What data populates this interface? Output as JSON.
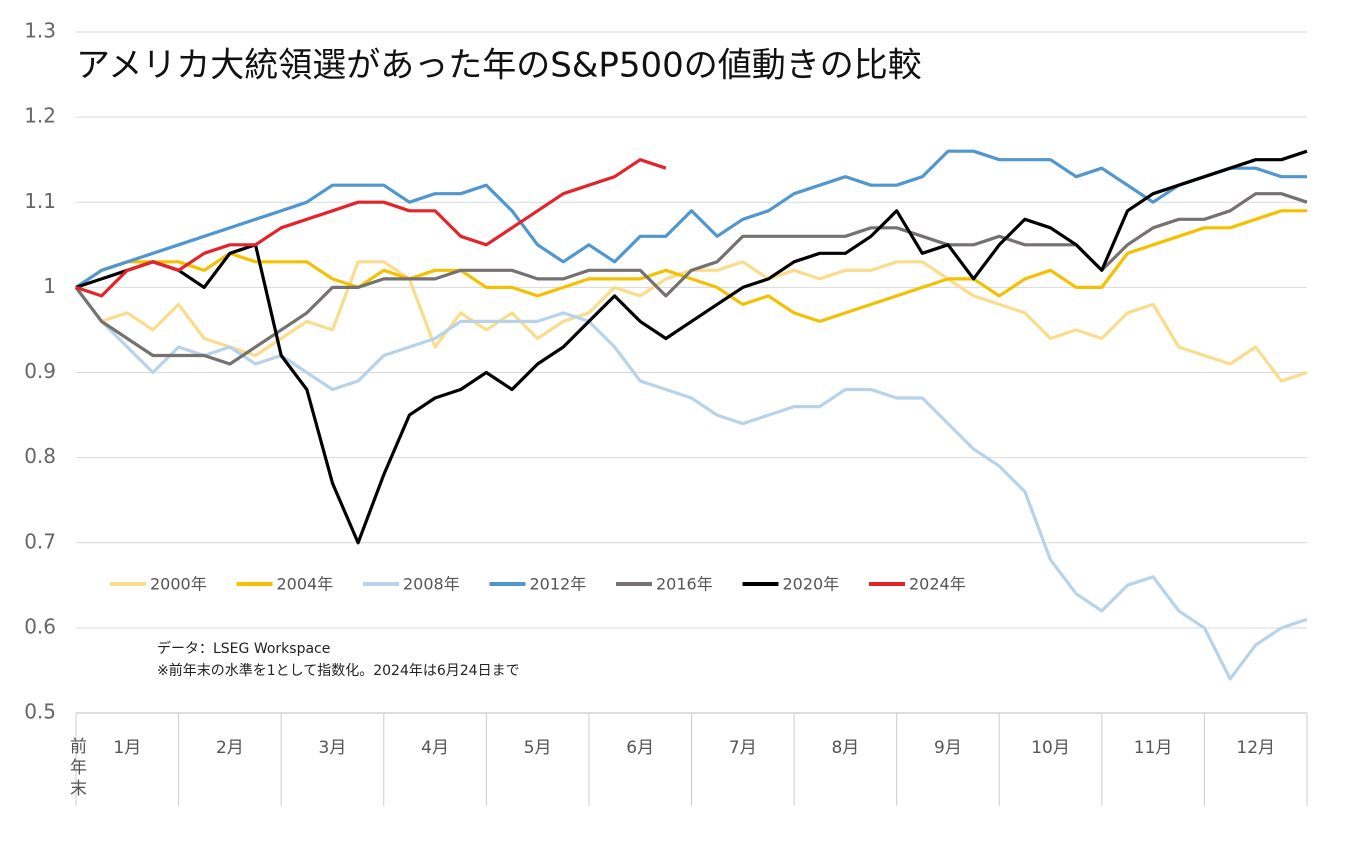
{
  "chart_data": {
    "type": "line",
    "title": "アメリカ大統領選があった年のS&P500の値動きの比較",
    "notes": [
      "データ：LSEG Workspace",
      "※前年末の水準を1として指数化。2024年は6月24日まで"
    ],
    "x": [
      0,
      0.25,
      0.5,
      0.75,
      1,
      1.25,
      1.5,
      1.75,
      2,
      2.25,
      2.5,
      2.75,
      3,
      3.25,
      3.5,
      3.75,
      4,
      4.25,
      4.5,
      4.75,
      5,
      5.25,
      5.5,
      5.75,
      6,
      6.25,
      6.5,
      6.75,
      7,
      7.25,
      7.5,
      7.75,
      8,
      8.25,
      8.5,
      8.75,
      9,
      9.25,
      9.5,
      9.75,
      10,
      10.25,
      10.5,
      10.75,
      11,
      11.25,
      11.5,
      11.75,
      12
    ],
    "xlim": [
      0,
      12
    ],
    "xticks": [
      {
        "value": 0,
        "label": "前年末"
      },
      {
        "value": 0.5,
        "label": "1月"
      },
      {
        "value": 1.5,
        "label": "2月"
      },
      {
        "value": 2.5,
        "label": "3月"
      },
      {
        "value": 3.5,
        "label": "4月"
      },
      {
        "value": 4.5,
        "label": "5月"
      },
      {
        "value": 5.5,
        "label": "6月"
      },
      {
        "value": 6.5,
        "label": "7月"
      },
      {
        "value": 7.5,
        "label": "8月"
      },
      {
        "value": 8.5,
        "label": "9月"
      },
      {
        "value": 9.5,
        "label": "10月"
      },
      {
        "value": 10.5,
        "label": "11月"
      },
      {
        "value": 11.5,
        "label": "12月"
      }
    ],
    "ylim": [
      0.5,
      1.3
    ],
    "yticks": [
      0.5,
      0.6,
      0.7,
      0.8,
      0.9,
      1,
      1.1,
      1.2,
      1.3
    ],
    "grid": true,
    "series": [
      {
        "name": "2000年",
        "color": "#f9dc8c",
        "values": [
          1.0,
          0.96,
          0.97,
          0.95,
          0.98,
          0.94,
          0.93,
          0.92,
          0.94,
          0.96,
          0.95,
          1.03,
          1.03,
          1.01,
          0.93,
          0.97,
          0.95,
          0.97,
          0.94,
          0.96,
          0.97,
          1.0,
          0.99,
          1.01,
          1.02,
          1.02,
          1.03,
          1.01,
          1.02,
          1.01,
          1.02,
          1.02,
          1.03,
          1.03,
          1.01,
          0.99,
          0.98,
          0.97,
          0.94,
          0.95,
          0.94,
          0.97,
          0.98,
          0.93,
          0.92,
          0.91,
          0.93,
          0.89,
          0.9
        ]
      },
      {
        "name": "2004年",
        "color": "#f5c000",
        "values": [
          1.0,
          1.02,
          1.03,
          1.03,
          1.03,
          1.02,
          1.04,
          1.03,
          1.03,
          1.03,
          1.01,
          1.0,
          1.02,
          1.01,
          1.02,
          1.02,
          1.0,
          1.0,
          0.99,
          1.0,
          1.01,
          1.01,
          1.01,
          1.02,
          1.01,
          1.0,
          0.98,
          0.99,
          0.97,
          0.96,
          0.97,
          0.98,
          0.99,
          1.0,
          1.01,
          1.01,
          0.99,
          1.01,
          1.02,
          1.0,
          1.0,
          1.04,
          1.05,
          1.06,
          1.07,
          1.07,
          1.08,
          1.09,
          1.09
        ]
      },
      {
        "name": "2008年",
        "color": "#b7d3ea",
        "values": [
          1.0,
          0.96,
          0.93,
          0.9,
          0.93,
          0.92,
          0.93,
          0.91,
          0.92,
          0.9,
          0.88,
          0.89,
          0.92,
          0.93,
          0.94,
          0.96,
          0.96,
          0.96,
          0.96,
          0.97,
          0.96,
          0.93,
          0.89,
          0.88,
          0.87,
          0.85,
          0.84,
          0.85,
          0.86,
          0.86,
          0.88,
          0.88,
          0.87,
          0.87,
          0.84,
          0.81,
          0.79,
          0.76,
          0.68,
          0.64,
          0.62,
          0.65,
          0.66,
          0.62,
          0.6,
          0.54,
          0.58,
          0.6,
          0.61
        ]
      },
      {
        "name": "2012年",
        "color": "#5096cf",
        "values": [
          1.0,
          1.02,
          1.03,
          1.04,
          1.05,
          1.06,
          1.07,
          1.08,
          1.09,
          1.1,
          1.12,
          1.12,
          1.12,
          1.1,
          1.11,
          1.11,
          1.12,
          1.09,
          1.05,
          1.03,
          1.05,
          1.03,
          1.06,
          1.06,
          1.09,
          1.06,
          1.08,
          1.09,
          1.11,
          1.12,
          1.13,
          1.12,
          1.12,
          1.13,
          1.16,
          1.16,
          1.15,
          1.15,
          1.15,
          1.13,
          1.14,
          1.12,
          1.1,
          1.12,
          1.13,
          1.14,
          1.14,
          1.13,
          1.13
        ]
      },
      {
        "name": "2016年",
        "color": "#767171",
        "values": [
          1.0,
          0.96,
          0.94,
          0.92,
          0.92,
          0.92,
          0.91,
          0.93,
          0.95,
          0.97,
          1.0,
          1.0,
          1.01,
          1.01,
          1.01,
          1.02,
          1.02,
          1.02,
          1.01,
          1.01,
          1.02,
          1.02,
          1.02,
          0.99,
          1.02,
          1.03,
          1.06,
          1.06,
          1.06,
          1.06,
          1.06,
          1.07,
          1.07,
          1.06,
          1.05,
          1.05,
          1.06,
          1.05,
          1.05,
          1.05,
          1.02,
          1.05,
          1.07,
          1.08,
          1.08,
          1.09,
          1.11,
          1.11,
          1.1
        ]
      },
      {
        "name": "2020年",
        "color": "#000000",
        "values": [
          1.0,
          1.01,
          1.02,
          1.03,
          1.02,
          1.0,
          1.04,
          1.05,
          0.92,
          0.88,
          0.77,
          0.7,
          0.78,
          0.85,
          0.87,
          0.88,
          0.9,
          0.88,
          0.91,
          0.93,
          0.96,
          0.99,
          0.96,
          0.94,
          0.96,
          0.98,
          1.0,
          1.01,
          1.03,
          1.04,
          1.04,
          1.06,
          1.09,
          1.04,
          1.05,
          1.01,
          1.05,
          1.08,
          1.07,
          1.05,
          1.02,
          1.09,
          1.11,
          1.12,
          1.13,
          1.14,
          1.15,
          1.15,
          1.16
        ]
      },
      {
        "name": "2024年",
        "color": "#e3242b",
        "values": [
          1.0,
          0.99,
          1.02,
          1.03,
          1.02,
          1.04,
          1.05,
          1.05,
          1.07,
          1.08,
          1.09,
          1.1,
          1.1,
          1.09,
          1.09,
          1.06,
          1.05,
          1.07,
          1.09,
          1.11,
          1.12,
          1.13,
          1.15,
          1.14,
          null,
          null,
          null,
          null,
          null,
          null,
          null,
          null,
          null,
          null,
          null,
          null,
          null,
          null,
          null,
          null,
          null,
          null,
          null,
          null,
          null,
          null,
          null,
          null,
          null
        ]
      }
    ]
  }
}
